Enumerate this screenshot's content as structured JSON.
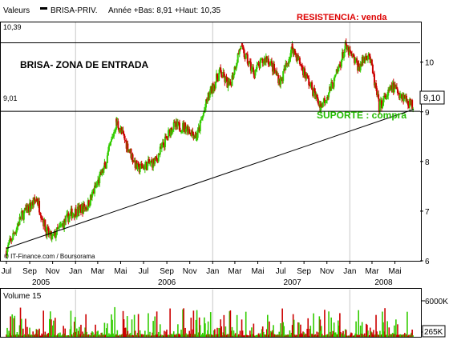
{
  "header": {
    "label": "Valeurs",
    "ticker": "BRISA-PRIV.",
    "stats": "Année +Bas: 8,91 +Haut: 10,35"
  },
  "annotations": {
    "resistance_value": "10,39",
    "support_value": "9,01",
    "resistance_text": "RESISTENCIA: venda",
    "support_text": "SUPORTE : compra",
    "zone_text": "BRISA- ZONA DE ENTRADA",
    "last_price": "9,10",
    "credit": "© IT-Finance.com / Boursorama"
  },
  "colors": {
    "up": "#33cc00",
    "down": "#cc0000",
    "frame": "#000000",
    "grid": "#c8c8c8",
    "resistance_text": "#dd0000",
    "support_text": "#22bb00",
    "volume_up": "#33cc00",
    "volume_down": "#cc0000"
  },
  "chart_data": [
    {
      "type": "candlestick",
      "title": "",
      "ylim": [
        6,
        10.8
      ],
      "yticks": [
        6,
        7,
        8,
        9,
        10
      ],
      "ytick_labels": [
        "6",
        "7",
        "8",
        "9",
        "10"
      ],
      "xticks": [
        {
          "label": "Jul",
          "date": "2004-07-01"
        },
        {
          "label": "Sep",
          "date": "2004-09-01"
        },
        {
          "label": "Nov",
          "date": "2004-11-01"
        },
        {
          "label": "Jan",
          "date": "2005-01-01"
        },
        {
          "label": "Mar",
          "date": "2005-03-01"
        },
        {
          "label": "Mai",
          "date": "2005-05-01"
        },
        {
          "label": "Jul",
          "date": "2005-07-01"
        },
        {
          "label": "Sep",
          "date": "2005-09-01"
        },
        {
          "label": "Nov",
          "date": "2005-11-01"
        },
        {
          "label": "Jan",
          "date": "2006-01-01"
        },
        {
          "label": "Mar",
          "date": "2006-03-01"
        },
        {
          "label": "Mai",
          "date": "2006-05-01"
        },
        {
          "label": "Jul",
          "date": "2006-07-01"
        },
        {
          "label": "Sep",
          "date": "2006-09-01"
        },
        {
          "label": "Nov",
          "date": "2006-11-01"
        },
        {
          "label": "Jan",
          "date": "2007-01-01"
        },
        {
          "label": "Mar",
          "date": "2007-03-01"
        },
        {
          "label": "Mai",
          "date": "2007-05-01"
        }
      ],
      "year_labels": [
        {
          "label": "2005",
          "date": "2004-10-01"
        },
        {
          "label": "2006",
          "date": "2005-09-01"
        },
        {
          "label": "2007",
          "date": "2006-08-01"
        },
        {
          "label": "2008",
          "date": "2007-04-01"
        }
      ],
      "year_separators": [
        "2005-01-01",
        "2006-01-01",
        "2007-01-01"
      ],
      "xlim": [
        "2004-07-01",
        "2007-06-20"
      ],
      "horizontal_lines": [
        {
          "name": "resistance",
          "y": 10.39
        },
        {
          "name": "support",
          "y": 9.01
        }
      ],
      "trendline": [
        {
          "date": "2004-07-01",
          "y": 6.25
        },
        {
          "date": "2007-06-20",
          "y": 9.05
        }
      ],
      "key_points": [
        {
          "date": "2004-07-01",
          "close": 6.2
        },
        {
          "date": "2004-08-10",
          "close": 6.9
        },
        {
          "date": "2004-09-20",
          "close": 7.25
        },
        {
          "date": "2004-10-15",
          "close": 6.6
        },
        {
          "date": "2004-10-30",
          "close": 6.45
        },
        {
          "date": "2004-12-20",
          "close": 6.95
        },
        {
          "date": "2005-02-01",
          "close": 7.1
        },
        {
          "date": "2005-03-20",
          "close": 7.9
        },
        {
          "date": "2005-04-20",
          "close": 8.8
        },
        {
          "date": "2005-05-20",
          "close": 8.3
        },
        {
          "date": "2005-06-15",
          "close": 7.85
        },
        {
          "date": "2005-08-01",
          "close": 8.0
        },
        {
          "date": "2005-09-15",
          "close": 8.7
        },
        {
          "date": "2005-10-20",
          "close": 8.7
        },
        {
          "date": "2005-11-20",
          "close": 8.5
        },
        {
          "date": "2005-12-20",
          "close": 9.3
        },
        {
          "date": "2006-01-20",
          "close": 9.8
        },
        {
          "date": "2006-02-15",
          "close": 9.5
        },
        {
          "date": "2006-03-15",
          "close": 10.3
        },
        {
          "date": "2006-04-20",
          "close": 9.8
        },
        {
          "date": "2006-05-25",
          "close": 10.1
        },
        {
          "date": "2006-07-01",
          "close": 9.6
        },
        {
          "date": "2006-08-01",
          "close": 10.3
        },
        {
          "date": "2006-09-20",
          "close": 9.5
        },
        {
          "date": "2006-10-15",
          "close": 9.1
        },
        {
          "date": "2006-11-20",
          "close": 9.6
        },
        {
          "date": "2006-12-20",
          "close": 10.3
        },
        {
          "date": "2007-01-25",
          "close": 9.9
        },
        {
          "date": "2007-02-20",
          "close": 10.2
        },
        {
          "date": "2007-03-20",
          "close": 9.1
        },
        {
          "date": "2007-04-25",
          "close": 9.5
        },
        {
          "date": "2007-05-25",
          "close": 9.3
        },
        {
          "date": "2007-06-20",
          "close": 9.1
        }
      ]
    },
    {
      "type": "bar",
      "title": "Volume 15",
      "y_unit": "shares",
      "ylim": [
        0,
        7000000
      ],
      "ytick_labels": [
        "6000K",
        "265K"
      ],
      "last_volume": "265K",
      "description": "daily volume bars, green on up days, red on down days"
    }
  ]
}
